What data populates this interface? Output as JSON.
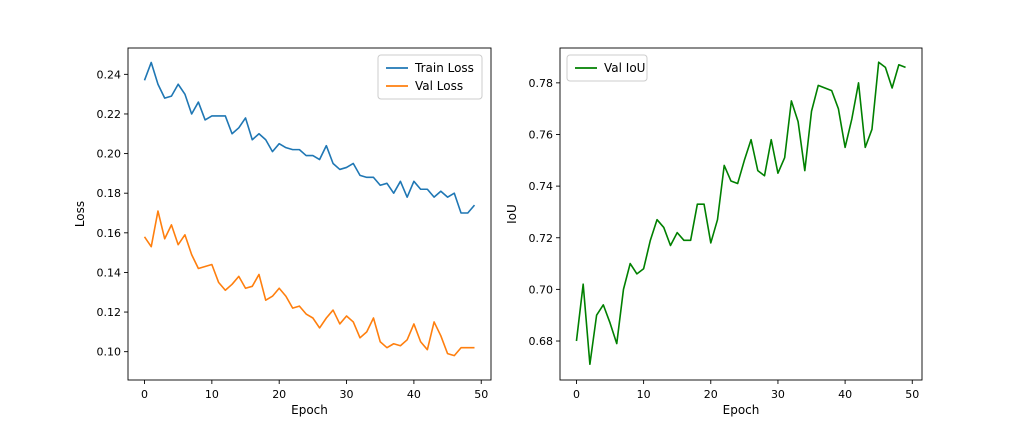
{
  "chart_data": [
    {
      "type": "line",
      "title": "",
      "xlabel": "Epoch",
      "ylabel": "Loss",
      "xlim": [
        -2.45,
        51.45
      ],
      "ylim": [
        0.0857,
        0.2533
      ],
      "xticks": [
        0,
        10,
        20,
        30,
        40,
        50
      ],
      "xtick_labels": [
        "0",
        "10",
        "20",
        "30",
        "40",
        "50"
      ],
      "yticks": [
        0.1,
        0.12,
        0.14,
        0.16,
        0.18,
        0.2,
        0.22,
        0.24
      ],
      "ytick_labels": [
        "0.10",
        "0.12",
        "0.14",
        "0.16",
        "0.18",
        "0.20",
        "0.22",
        "0.24"
      ],
      "grid": false,
      "legend": "top-right",
      "x": [
        0,
        1,
        2,
        3,
        4,
        5,
        6,
        7,
        8,
        9,
        10,
        11,
        12,
        13,
        14,
        15,
        16,
        17,
        18,
        19,
        20,
        21,
        22,
        23,
        24,
        25,
        26,
        27,
        28,
        29,
        30,
        31,
        32,
        33,
        34,
        35,
        36,
        37,
        38,
        39,
        40,
        41,
        42,
        43,
        44,
        45,
        46,
        47,
        48,
        49
      ],
      "series": [
        {
          "name": "Train Loss",
          "color": "#1f77b4",
          "values": [
            0.237,
            0.246,
            0.235,
            0.228,
            0.229,
            0.235,
            0.23,
            0.22,
            0.226,
            0.217,
            0.219,
            0.219,
            0.219,
            0.21,
            0.213,
            0.218,
            0.207,
            0.21,
            0.207,
            0.201,
            0.205,
            0.203,
            0.202,
            0.202,
            0.199,
            0.199,
            0.197,
            0.204,
            0.195,
            0.192,
            0.193,
            0.195,
            0.189,
            0.188,
            0.188,
            0.184,
            0.185,
            0.18,
            0.186,
            0.178,
            0.186,
            0.182,
            0.182,
            0.178,
            0.181,
            0.178,
            0.18,
            0.17,
            0.17,
            0.174
          ]
        },
        {
          "name": "Val Loss",
          "color": "#ff7f0e",
          "values": [
            0.158,
            0.153,
            0.171,
            0.157,
            0.164,
            0.154,
            0.159,
            0.149,
            0.142,
            0.143,
            0.144,
            0.135,
            0.131,
            0.134,
            0.138,
            0.132,
            0.133,
            0.139,
            0.126,
            0.128,
            0.132,
            0.128,
            0.122,
            0.123,
            0.119,
            0.117,
            0.112,
            0.117,
            0.121,
            0.114,
            0.118,
            0.115,
            0.107,
            0.11,
            0.117,
            0.105,
            0.102,
            0.104,
            0.103,
            0.106,
            0.114,
            0.105,
            0.101,
            0.115,
            0.108,
            0.099,
            0.098,
            0.102,
            0.102,
            0.102
          ]
        }
      ]
    },
    {
      "type": "line",
      "title": "",
      "xlabel": "Epoch",
      "ylabel": "IoU",
      "xlim": [
        -2.45,
        51.45
      ],
      "ylim": [
        0.6649,
        0.7935
      ],
      "xticks": [
        0,
        10,
        20,
        30,
        40,
        50
      ],
      "xtick_labels": [
        "0",
        "10",
        "20",
        "30",
        "40",
        "50"
      ],
      "yticks": [
        0.68,
        0.7,
        0.72,
        0.74,
        0.76,
        0.78
      ],
      "ytick_labels": [
        "0.68",
        "0.70",
        "0.72",
        "0.74",
        "0.76",
        "0.78"
      ],
      "grid": false,
      "legend": "top-left",
      "x": [
        0,
        1,
        2,
        3,
        4,
        5,
        6,
        7,
        8,
        9,
        10,
        11,
        12,
        13,
        14,
        15,
        16,
        17,
        18,
        19,
        20,
        21,
        22,
        23,
        24,
        25,
        26,
        27,
        28,
        29,
        30,
        31,
        32,
        33,
        34,
        35,
        36,
        37,
        38,
        39,
        40,
        41,
        42,
        43,
        44,
        45,
        46,
        47,
        48,
        49
      ],
      "series": [
        {
          "name": "Val IoU",
          "color": "#008000",
          "values": [
            0.68,
            0.702,
            0.671,
            0.69,
            0.694,
            0.687,
            0.679,
            0.7,
            0.71,
            0.706,
            0.708,
            0.719,
            0.727,
            0.724,
            0.717,
            0.722,
            0.719,
            0.719,
            0.733,
            0.733,
            0.718,
            0.727,
            0.748,
            0.742,
            0.741,
            0.75,
            0.758,
            0.746,
            0.744,
            0.758,
            0.745,
            0.751,
            0.773,
            0.765,
            0.746,
            0.769,
            0.779,
            0.778,
            0.777,
            0.77,
            0.755,
            0.766,
            0.78,
            0.755,
            0.762,
            0.788,
            0.786,
            0.778,
            0.787,
            0.786
          ]
        }
      ]
    }
  ]
}
